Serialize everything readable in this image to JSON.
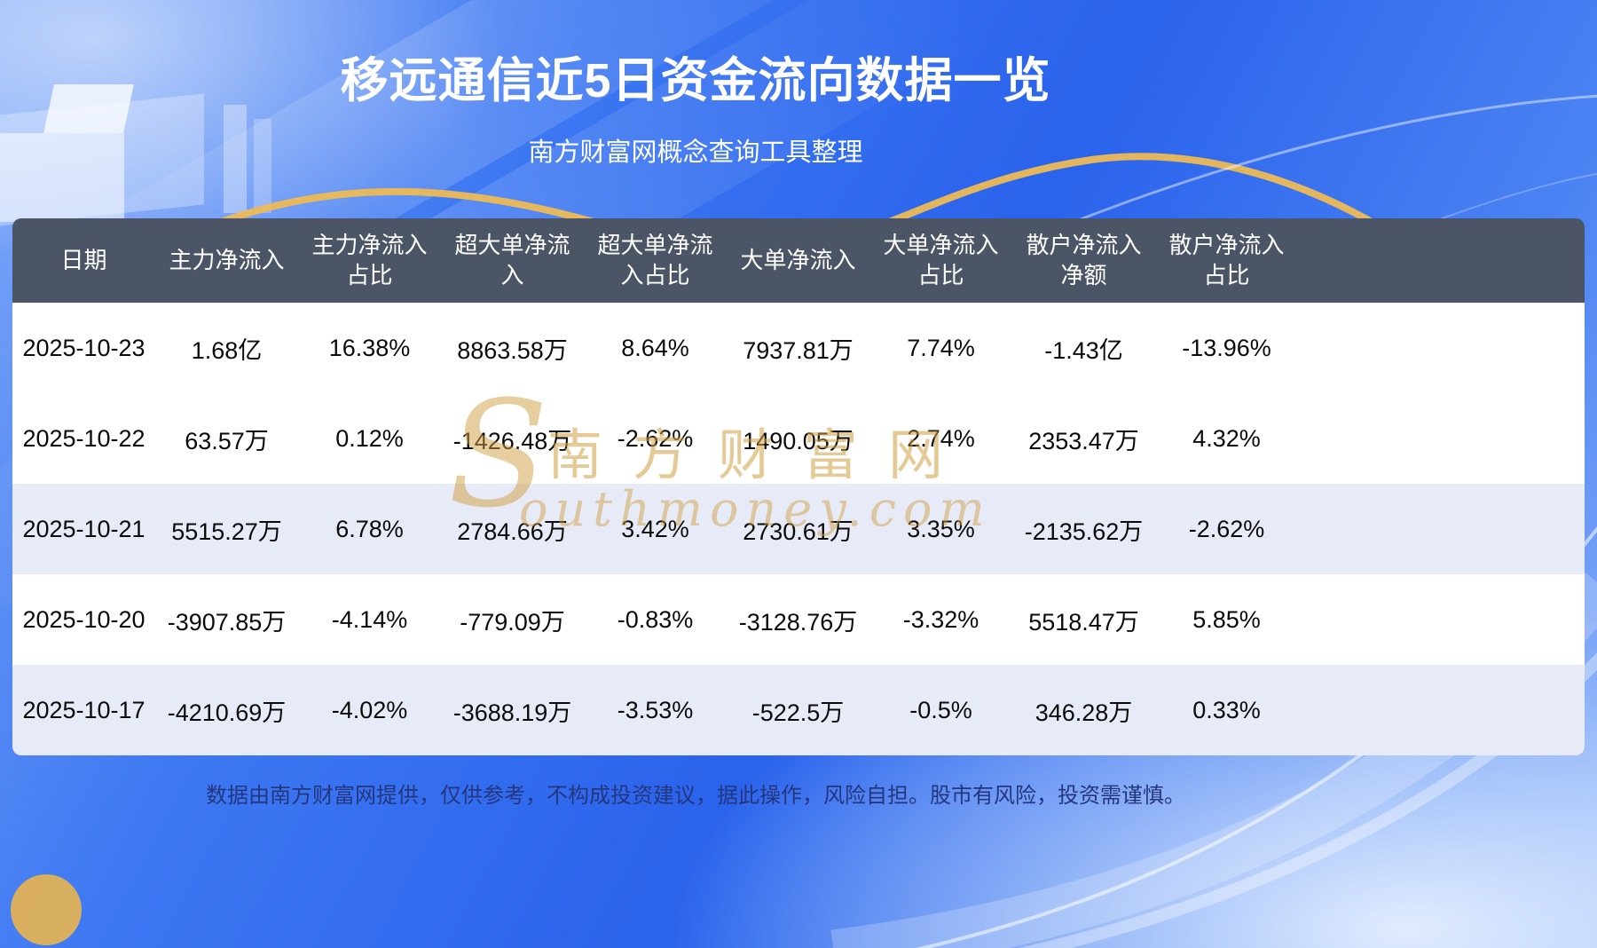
{
  "header": {
    "title": "移远通信近5日资金流向数据一览",
    "subtitle": "南方财富网概念查询工具整理"
  },
  "watermark": {
    "initial": "S",
    "cn": "南方财富网",
    "en": "outhmoney.com"
  },
  "footer": {
    "disclaimer": "数据由南方财富网提供，仅供参考，不构成投资建议，据此操作，风险自担。股市有风险，投资需谨慎。"
  },
  "colors": {
    "table_header_bg": "#4B5565",
    "row_alt_bg": "#E7EAF7",
    "accent_gold": "#EDBB55",
    "background_blue": "#2F6CF0"
  },
  "chart_data": {
    "type": "table",
    "title": "移远通信近5日资金流向数据一览",
    "columns": [
      "日期",
      "主力净流入",
      "主力净流入占比",
      "超大单净流入",
      "超大单净流入占比",
      "大单净流入",
      "大单净流入占比",
      "散户净流入净额",
      "散户净流入占比"
    ],
    "rows": [
      [
        "2025-10-23",
        "1.68亿",
        "16.38%",
        "8863.58万",
        "8.64%",
        "7937.81万",
        "7.74%",
        "-1.43亿",
        "-13.96%"
      ],
      [
        "2025-10-22",
        "63.57万",
        "0.12%",
        "-1426.48万",
        "-2.62%",
        "1490.05万",
        "2.74%",
        "2353.47万",
        "4.32%"
      ],
      [
        "2025-10-21",
        "5515.27万",
        "6.78%",
        "2784.66万",
        "3.42%",
        "2730.61万",
        "3.35%",
        "-2135.62万",
        "-2.62%"
      ],
      [
        "2025-10-20",
        "-3907.85万",
        "-4.14%",
        "-779.09万",
        "-0.83%",
        "-3128.76万",
        "-3.32%",
        "5518.47万",
        "5.85%"
      ],
      [
        "2025-10-17",
        "-4210.69万",
        "-4.02%",
        "-3688.19万",
        "-3.53%",
        "-522.5万",
        "-0.5%",
        "346.28万",
        "0.33%"
      ]
    ],
    "shaded_row_indices": [
      2,
      4
    ],
    "legend_position": "none",
    "grid": false
  }
}
